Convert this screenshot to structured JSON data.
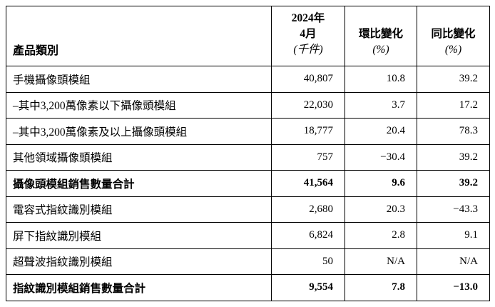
{
  "table": {
    "header": {
      "col1": "產品類別",
      "col2_lines": [
        "2024年",
        "4月",
        "(千件)"
      ],
      "col3_lines": [
        "環比變化",
        "(%)"
      ],
      "col4_lines": [
        "同比變化",
        "(%)"
      ]
    },
    "rows": [
      {
        "label": "手機攝像頭模組",
        "value": "40,807",
        "mom": "10.8",
        "yoy": "39.2",
        "bold": false
      },
      {
        "label": "–其中3,200萬像素以下攝像頭模組",
        "value": "22,030",
        "mom": "3.7",
        "yoy": "17.2",
        "bold": false
      },
      {
        "label": "–其中3,200萬像素及以上攝像頭模組",
        "value": "18,777",
        "mom": "20.4",
        "yoy": "78.3",
        "bold": false
      },
      {
        "label": "其他領域攝像頭模組",
        "value": "757",
        "mom": "−30.4",
        "yoy": "39.2",
        "bold": false
      },
      {
        "label": "攝像頭模組銷售數量合計",
        "value": "41,564",
        "mom": "9.6",
        "yoy": "39.2",
        "bold": true
      },
      {
        "label": "電容式指紋識別模組",
        "value": "2,680",
        "mom": "20.3",
        "yoy": "−43.3",
        "bold": false
      },
      {
        "label": "屏下指紋識別模組",
        "value": "6,824",
        "mom": "2.8",
        "yoy": "9.1",
        "bold": false
      },
      {
        "label": "超聲波指紋識別模組",
        "value": "50",
        "mom": "N/A",
        "yoy": "N/A",
        "bold": false
      },
      {
        "label": "指紋識別模組銷售數量合計",
        "value": "9,554",
        "mom": "7.8",
        "yoy": "−13.0",
        "bold": true
      }
    ]
  }
}
